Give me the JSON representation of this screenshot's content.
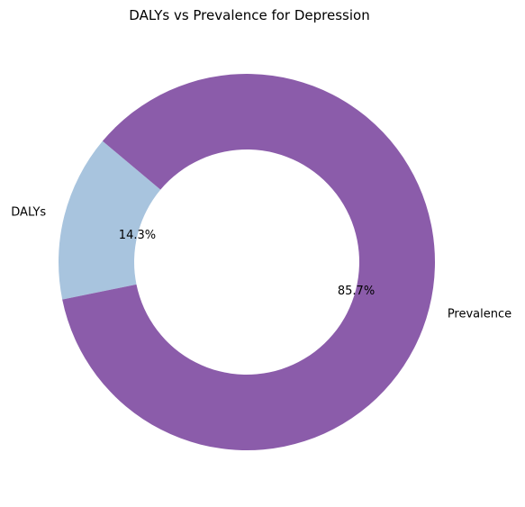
{
  "chart_data": {
    "type": "pie",
    "donut": true,
    "title": "DALYs vs Prevalence for Depression",
    "categories": [
      "DALYs",
      "Prevalence"
    ],
    "values": [
      14.3,
      85.7
    ],
    "percent_labels": [
      "14.3%",
      "85.7%"
    ],
    "colors": [
      "#a8c4de",
      "#8b5caa"
    ],
    "start_angle_deg": 140,
    "direction": "counterclockwise",
    "legend": "none"
  }
}
